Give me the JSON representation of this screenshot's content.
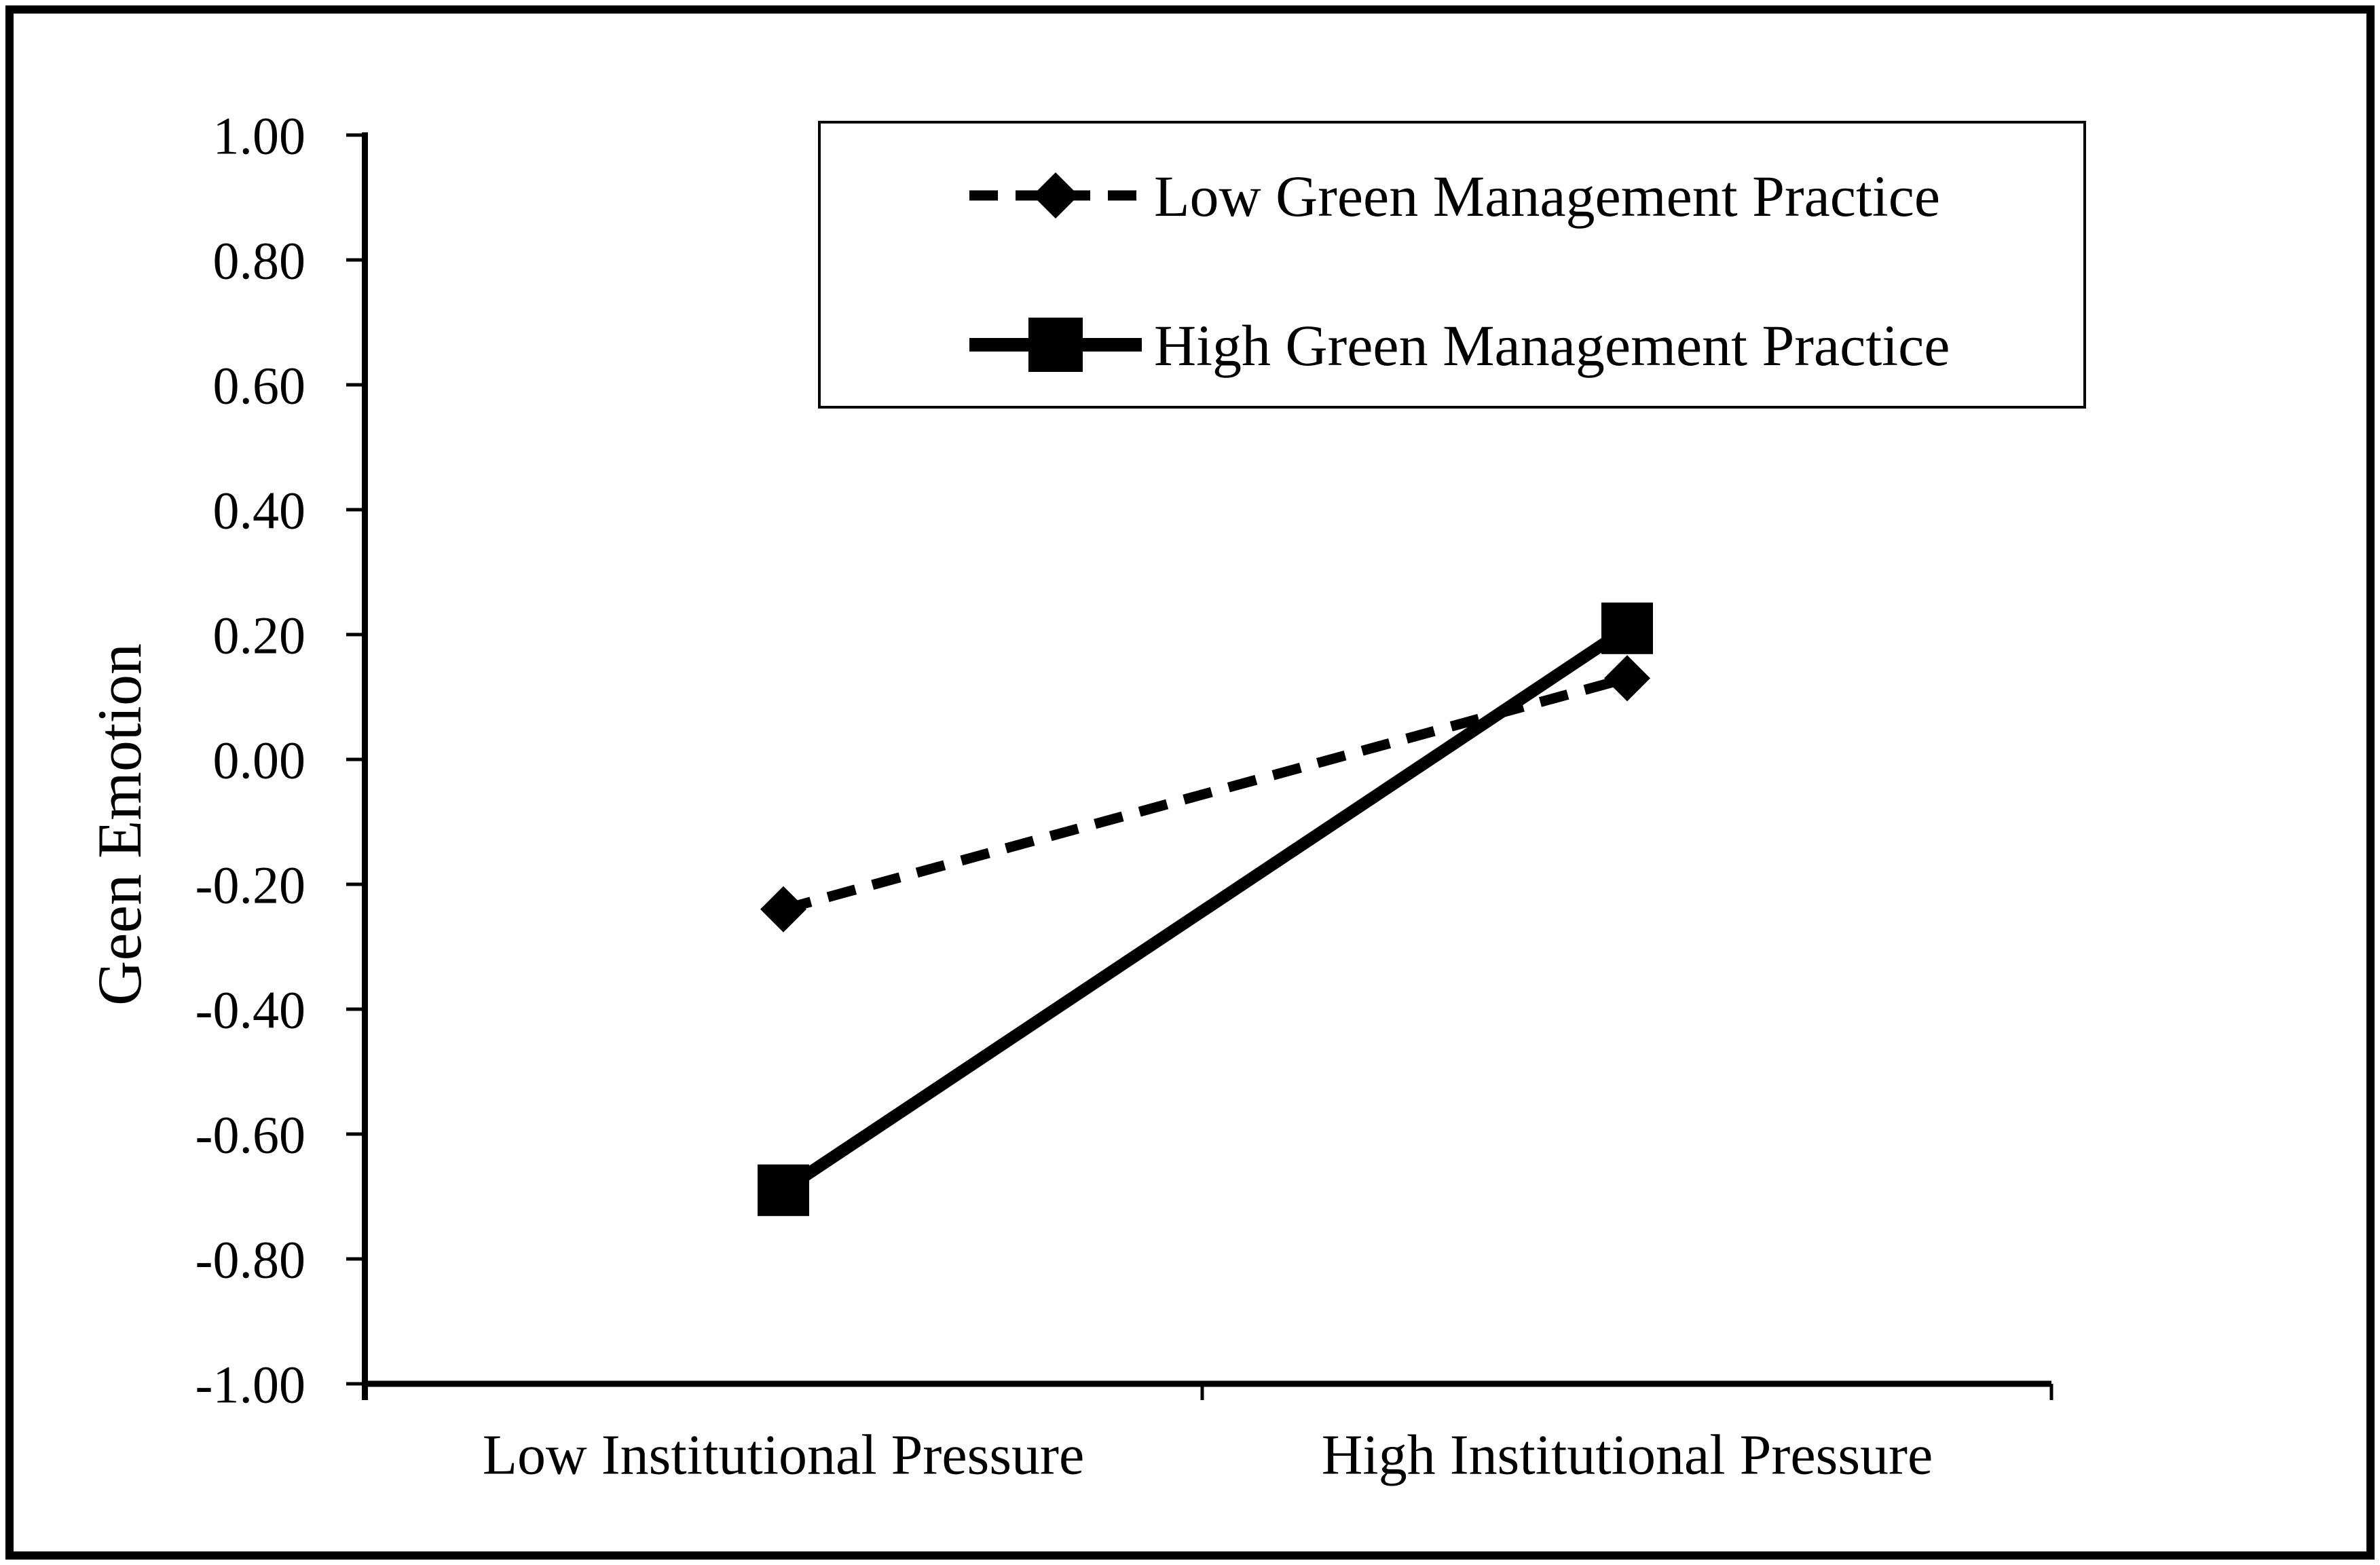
{
  "figure": {
    "background_color": "#ffffff",
    "ink_color": "#000000",
    "border_color": "#000000"
  },
  "chart_data": {
    "type": "line",
    "title": "",
    "categories": [
      "Low Institutional Pressure",
      "High Institutional Pressure"
    ],
    "series": [
      {
        "name": "Low Green Management Practice",
        "values": [
          -0.24,
          0.13
        ],
        "line_style": "dashed",
        "marker": "diamond",
        "color": "#000000"
      },
      {
        "name": "High Green Management Practice",
        "values": [
          -0.69,
          0.21
        ],
        "line_style": "solid",
        "marker": "square",
        "color": "#000000"
      }
    ],
    "xlabel": "",
    "ylabel": "Geen Emotion",
    "ylim": [
      -1.0,
      1.0
    ],
    "y_tick_step": 0.2,
    "y_tick_labels": [
      "1.00",
      "0.80",
      "0.60",
      "0.40",
      "0.20",
      "0.00",
      "-0.20",
      "-0.40",
      "-0.60",
      "-0.80",
      "-1.00"
    ],
    "grid": false,
    "legend_position": "top-center-box"
  }
}
